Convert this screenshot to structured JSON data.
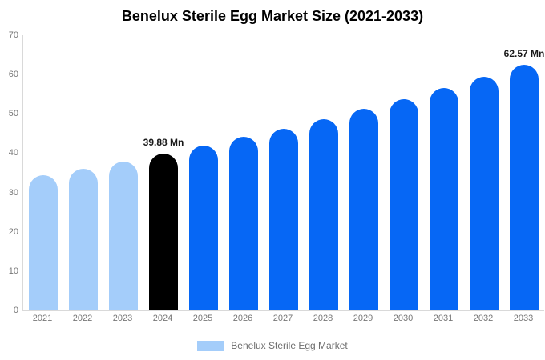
{
  "title": "Benelux Sterile Egg Market Size (2021-2033)",
  "colors": {
    "light": "#a4cdfa",
    "primary": "#0667f5",
    "highlight": "#000000",
    "axis_line": "#d9d9d9",
    "axis_text": "#767676",
    "annotation_text": "#1a1a1a"
  },
  "legend": {
    "label": "Benelux Sterile Egg Market",
    "swatch_color": "#a4cdfa"
  },
  "chart_data": {
    "type": "bar",
    "title": "Benelux Sterile Egg Market Size (2021-2033)",
    "xlabel": "",
    "ylabel": "",
    "categories": [
      "2021",
      "2022",
      "2023",
      "2024",
      "2025",
      "2026",
      "2027",
      "2028",
      "2029",
      "2030",
      "2031",
      "2032",
      "2033"
    ],
    "values": [
      34.3,
      36.1,
      37.9,
      39.88,
      41.9,
      44.1,
      46.3,
      48.7,
      51.2,
      53.8,
      56.6,
      59.5,
      62.57
    ],
    "bar_styles": [
      "light",
      "light",
      "light",
      "highlight",
      "primary",
      "primary",
      "primary",
      "primary",
      "primary",
      "primary",
      "primary",
      "primary",
      "primary"
    ],
    "annotations": [
      {
        "index": 3,
        "text": "39.88 Mn"
      },
      {
        "index": 12,
        "text": "62.57 Mn"
      }
    ],
    "ylim": [
      0,
      70
    ],
    "yticks": [
      0,
      10,
      20,
      30,
      40,
      50,
      60,
      70
    ],
    "grid": false,
    "legend_position": "bottom",
    "legend_entries": [
      "Benelux Sterile Egg Market"
    ],
    "unit": "Mn"
  }
}
